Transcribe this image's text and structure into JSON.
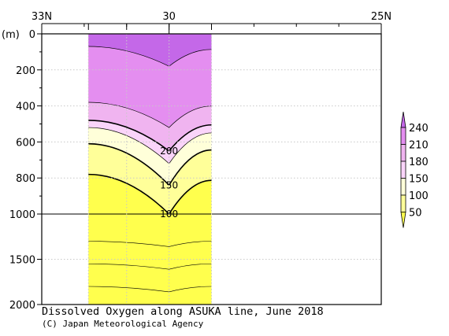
{
  "chart_data": {
    "type": "contour",
    "title": "Dissolved Oxygen along ASUKA line, June 2018",
    "credit": "(C) Japan Meteorological Agency",
    "ylabel": "(m)",
    "xlabel": "",
    "x_axis": {
      "top_tick_labels": [
        "33N",
        "30",
        "25N"
      ],
      "label_latitudes": [
        33,
        30,
        25
      ],
      "station_latitudes": [
        31.9,
        31.0,
        30.0,
        29.0
      ],
      "xlim": [
        33,
        25
      ]
    },
    "y_axis": {
      "tick_labels": [
        "0",
        "200",
        "400",
        "600",
        "800",
        "1000",
        "1500",
        "2000"
      ],
      "ticks": [
        0,
        200,
        400,
        600,
        800,
        1000,
        1500,
        2000
      ],
      "upper_segment": [
        0,
        1000
      ],
      "lower_segment": [
        1000,
        2000
      ],
      "ylim": [
        0,
        2000
      ],
      "inverted": true,
      "grid": true
    },
    "data_extent": {
      "lat_range": [
        31.9,
        29.0
      ],
      "depth_range": [
        0,
        2000
      ]
    },
    "colorbar": {
      "labels": [
        "50",
        "100",
        "150",
        "180",
        "210",
        "240"
      ],
      "levels": [
        50,
        100,
        150,
        180,
        210,
        240
      ],
      "colors": [
        "#ffff4d",
        "#ffff99",
        "#ffffd9",
        "#fad4fa",
        "#f0b4f0",
        "#e48ef0",
        "#c468e8"
      ],
      "extend": "both"
    },
    "contour_labels": [
      {
        "text": "200",
        "lat": 30.0,
        "depth": 650
      },
      {
        "text": "150",
        "lat": 30.0,
        "depth": 840
      },
      {
        "text": "100",
        "lat": 30.0,
        "depth": 1000
      }
    ],
    "profiles": {
      "description_levels": [
        50,
        100,
        150,
        180,
        210,
        240
      ],
      "center_lat": 30.0,
      "flank_lat": 31.9,
      "isoline_depths_center": {
        "100": 1000,
        "150": 840,
        "180": 720,
        "200": 650,
        "210": 520,
        "240": 180
      },
      "isoline_depths_flank": {
        "100": 780,
        "150": 610,
        "180": 520,
        "200": 480,
        "210": 380,
        "240": 70
      }
    }
  }
}
